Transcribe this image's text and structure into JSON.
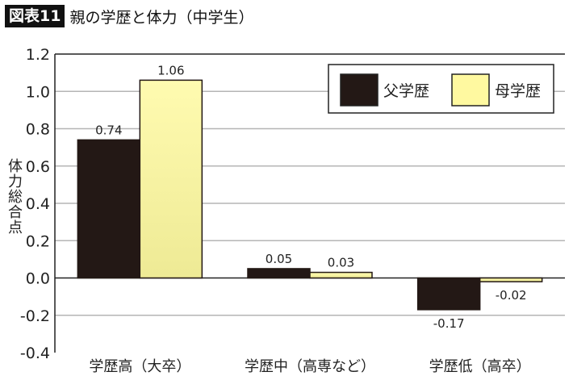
{
  "header": {
    "badge": "図表11",
    "title": "親の学歴と体力（中学生）"
  },
  "chart_data": {
    "type": "bar",
    "title": "親の学歴と体力（中学生）",
    "ylabel": "体力総合点",
    "xlabel": "",
    "ylim": [
      -0.4,
      1.2
    ],
    "yticks": [
      -0.4,
      -0.2,
      0.0,
      0.2,
      0.4,
      0.6,
      0.8,
      1.0,
      1.2
    ],
    "ytick_labels": [
      "-0.4",
      "-0.2",
      "0.0",
      "0.2",
      "0.4",
      "0.6",
      "0.8",
      "1.0",
      "1.2"
    ],
    "grid": true,
    "legend_position": "top-right",
    "categories": [
      "学歴高（大卒）",
      "学歴中（高専など）",
      "学歴低（高卒）"
    ],
    "series": [
      {
        "name": "父学歴",
        "values": [
          0.74,
          0.05,
          -0.17
        ],
        "labels": [
          "0.74",
          "0.05",
          "-0.17"
        ],
        "color": "#231815"
      },
      {
        "name": "母学歴",
        "values": [
          1.06,
          0.03,
          -0.02
        ],
        "labels": [
          "1.06",
          "0.03",
          "-0.02"
        ],
        "color": "#fff9a0"
      }
    ]
  }
}
